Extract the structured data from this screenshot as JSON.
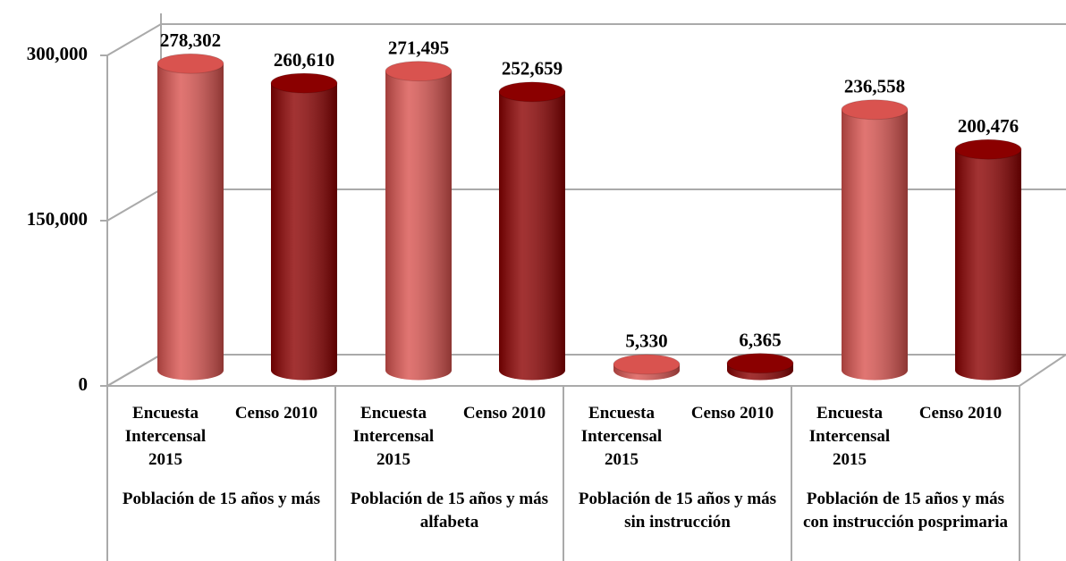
{
  "chart_data": {
    "type": "bar3d",
    "categories": [
      "Población de 15 años y más",
      "Población de 15 años y más alfabeta",
      "Población de 15 años y más sin instrucción",
      "Población de 15 años y más con instrucción posprimaria"
    ],
    "series": [
      {
        "name": "Encuesta Intercensal 2015",
        "color": "#d9534f",
        "values": [
          278302,
          271495,
          5330,
          236558
        ],
        "value_labels": [
          "278,302",
          "271,495",
          "5,330",
          "236,558"
        ]
      },
      {
        "name": "Censo 2010",
        "color": "#8b0000",
        "values": [
          260610,
          252659,
          6365,
          200476
        ],
        "value_labels": [
          "260,610",
          "252,659",
          "6,365",
          "200,476"
        ]
      }
    ],
    "ylim": [
      0,
      300000
    ],
    "yticks": [
      0,
      {
        "value": 150000,
        "label": "150,000"
      },
      {
        "value": 300000,
        "label": "300,000"
      }
    ],
    "grid": true
  }
}
